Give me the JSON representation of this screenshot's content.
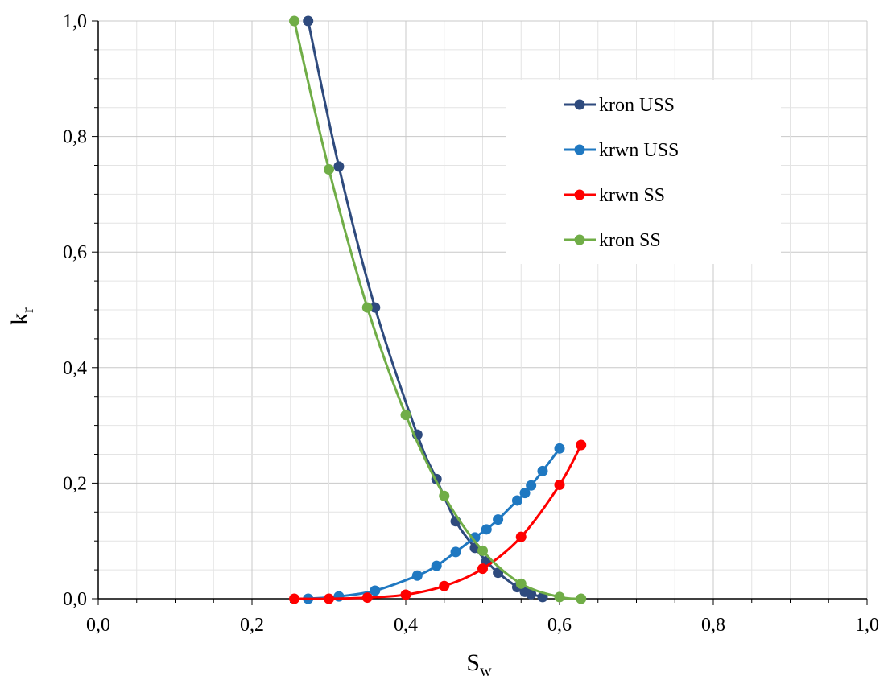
{
  "chart_data": {
    "type": "line",
    "title": "",
    "xlabel": {
      "main": "S",
      "sub": "w"
    },
    "ylabel": {
      "main": "k",
      "sub": "r"
    },
    "xlim": [
      0,
      1
    ],
    "ylim": [
      0,
      1
    ],
    "x_ticks": [
      "0,0",
      "0,2",
      "0,4",
      "0,6",
      "0,8",
      "1,0"
    ],
    "y_ticks": [
      "0,0",
      "0,2",
      "0,4",
      "0,6",
      "0,8",
      "1,0"
    ],
    "grid": true,
    "legend_position": "top-right",
    "series": [
      {
        "name": "kron USS",
        "color": "#2E4A7D",
        "x": [
          0.273,
          0.313,
          0.36,
          0.415,
          0.44,
          0.465,
          0.49,
          0.505,
          0.52,
          0.545,
          0.555,
          0.563,
          0.578
        ],
        "y": [
          1.0,
          0.748,
          0.504,
          0.284,
          0.207,
          0.134,
          0.088,
          0.065,
          0.045,
          0.02,
          0.012,
          0.008,
          0.003
        ]
      },
      {
        "name": "krwn USS",
        "color": "#1F78C1",
        "x": [
          0.273,
          0.313,
          0.36,
          0.415,
          0.44,
          0.465,
          0.49,
          0.505,
          0.52,
          0.545,
          0.555,
          0.563,
          0.578,
          0.6
        ],
        "y": [
          0.0,
          0.004,
          0.014,
          0.04,
          0.057,
          0.081,
          0.106,
          0.12,
          0.137,
          0.17,
          0.183,
          0.196,
          0.221,
          0.26
        ]
      },
      {
        "name": "krwn SS",
        "color": "#FF0000",
        "x": [
          0.255,
          0.3,
          0.35,
          0.4,
          0.45,
          0.5,
          0.55,
          0.6,
          0.628
        ],
        "y": [
          0.0,
          0.0,
          0.002,
          0.007,
          0.022,
          0.052,
          0.107,
          0.197,
          0.266
        ]
      },
      {
        "name": "kron SS",
        "color": "#70AD47",
        "x": [
          0.255,
          0.3,
          0.35,
          0.4,
          0.45,
          0.5,
          0.55,
          0.6,
          0.628
        ],
        "y": [
          1.0,
          0.743,
          0.504,
          0.318,
          0.178,
          0.083,
          0.026,
          0.003,
          0.0
        ]
      }
    ]
  }
}
